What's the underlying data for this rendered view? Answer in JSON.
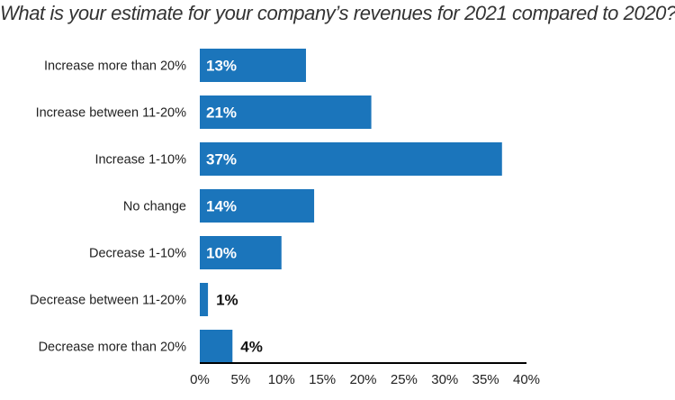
{
  "chart_data": {
    "type": "bar",
    "orientation": "horizontal",
    "title": "What is your estimate for your company’s revenues for 2021 compared to 2020?",
    "categories": [
      "Increase more than 20%",
      "Increase between 11-20%",
      "Increase 1-10%",
      "No change",
      "Decrease 1-10%",
      "Decrease between 11-20%",
      "Decrease more than 20%"
    ],
    "values": [
      13,
      21,
      37,
      14,
      10,
      1,
      4
    ],
    "value_labels": [
      "13%",
      "21%",
      "37%",
      "14%",
      "10%",
      "1%",
      "4%"
    ],
    "xlim": [
      0,
      40
    ],
    "xticks": [
      "0%",
      "5%",
      "10%",
      "15%",
      "20%",
      "25%",
      "30%",
      "35%",
      "40%"
    ],
    "grid": false,
    "bar_color": "#1b75bb",
    "label_inside_color": "#ffffff",
    "label_outside_color": "#111111"
  }
}
